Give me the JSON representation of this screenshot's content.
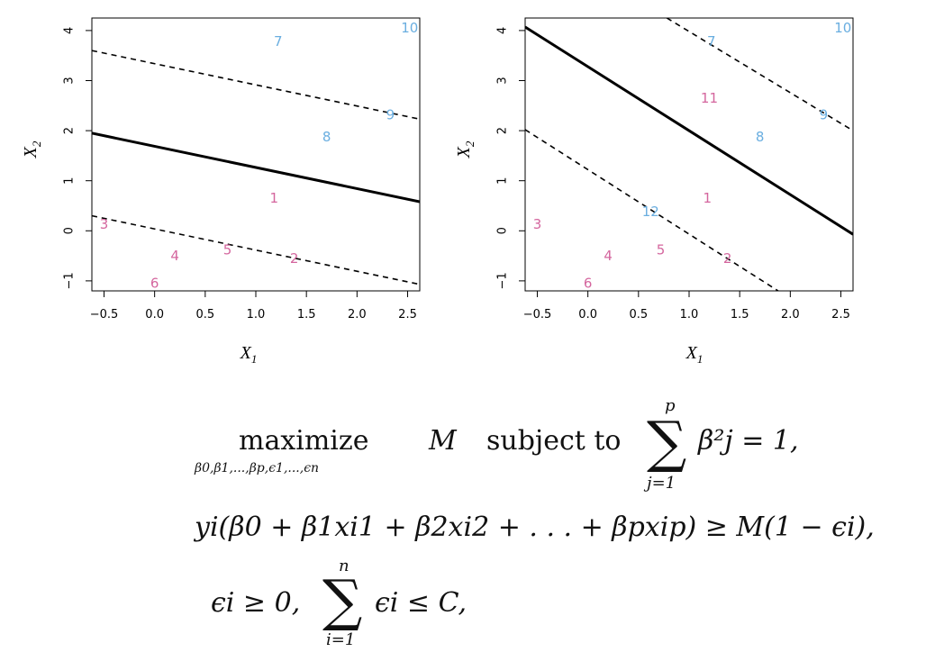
{
  "colors": {
    "pos": "#6aaee0",
    "neg": "#d4669e",
    "ink": "#000000"
  },
  "chart_data": [
    {
      "type": "scatter",
      "xlabel_main": "X",
      "xlabel_sub": "1",
      "ylabel_main": "X",
      "ylabel_sub": "2",
      "xlim": [
        -0.62,
        2.62
      ],
      "ylim": [
        -1.2,
        4.25
      ],
      "xticks": [
        "-0.5",
        "0.0",
        "0.5",
        "1.0",
        "1.5",
        "2.0",
        "2.5"
      ],
      "yticks": [
        "-1",
        "0",
        "1",
        "2",
        "3",
        "4"
      ],
      "points": [
        {
          "label": "1",
          "x": 1.18,
          "y": 0.65,
          "class": "neg"
        },
        {
          "label": "2",
          "x": 1.38,
          "y": -0.55,
          "class": "neg"
        },
        {
          "label": "3",
          "x": -0.5,
          "y": 0.13,
          "class": "neg"
        },
        {
          "label": "4",
          "x": 0.2,
          "y": -0.5,
          "class": "neg"
        },
        {
          "label": "5",
          "x": 0.72,
          "y": -0.38,
          "class": "neg"
        },
        {
          "label": "6",
          "x": 0.0,
          "y": -1.05,
          "class": "neg"
        },
        {
          "label": "7",
          "x": 1.22,
          "y": 3.78,
          "class": "pos"
        },
        {
          "label": "8",
          "x": 1.7,
          "y": 1.88,
          "class": "pos"
        },
        {
          "label": "9",
          "x": 2.33,
          "y": 2.32,
          "class": "pos"
        },
        {
          "label": "10",
          "x": 2.52,
          "y": 4.05,
          "class": "pos"
        }
      ],
      "lines": [
        {
          "style": "solid",
          "x1": -0.62,
          "y1": 1.95,
          "x2": 2.62,
          "y2": 0.58
        },
        {
          "style": "dashed",
          "x1": -0.62,
          "y1": 3.6,
          "x2": 2.62,
          "y2": 2.23
        },
        {
          "style": "dashed",
          "x1": -0.62,
          "y1": 0.3,
          "x2": 2.62,
          "y2": -1.07
        }
      ]
    },
    {
      "type": "scatter",
      "xlabel_main": "X",
      "xlabel_sub": "1",
      "ylabel_main": "X",
      "ylabel_sub": "2",
      "xlim": [
        -0.62,
        2.62
      ],
      "ylim": [
        -1.2,
        4.25
      ],
      "xticks": [
        "-0.5",
        "0.0",
        "0.5",
        "1.0",
        "1.5",
        "2.0",
        "2.5"
      ],
      "yticks": [
        "-1",
        "0",
        "1",
        "2",
        "3",
        "4"
      ],
      "points": [
        {
          "label": "1",
          "x": 1.18,
          "y": 0.65,
          "class": "neg"
        },
        {
          "label": "2",
          "x": 1.38,
          "y": -0.55,
          "class": "neg"
        },
        {
          "label": "3",
          "x": -0.5,
          "y": 0.13,
          "class": "neg"
        },
        {
          "label": "4",
          "x": 0.2,
          "y": -0.5,
          "class": "neg"
        },
        {
          "label": "5",
          "x": 0.72,
          "y": -0.38,
          "class": "neg"
        },
        {
          "label": "6",
          "x": 0.0,
          "y": -1.05,
          "class": "neg"
        },
        {
          "label": "7",
          "x": 1.22,
          "y": 3.78,
          "class": "pos"
        },
        {
          "label": "8",
          "x": 1.7,
          "y": 1.88,
          "class": "pos"
        },
        {
          "label": "9",
          "x": 2.33,
          "y": 2.32,
          "class": "pos"
        },
        {
          "label": "10",
          "x": 2.52,
          "y": 4.05,
          "class": "pos"
        },
        {
          "label": "11",
          "x": 1.2,
          "y": 2.65,
          "class": "neg"
        },
        {
          "label": "12",
          "x": 0.62,
          "y": 0.38,
          "class": "pos"
        }
      ],
      "lines": [
        {
          "style": "solid",
          "x1": -0.62,
          "y1": 4.07,
          "x2": 2.62,
          "y2": -0.07
        },
        {
          "style": "dashed",
          "x1": 0.78,
          "y1": 4.25,
          "x2": 2.62,
          "y2": 2.0
        },
        {
          "style": "dashed",
          "x1": -0.62,
          "y1": 2.02,
          "x2": 1.88,
          "y2": -1.2
        }
      ]
    }
  ],
  "formula": {
    "maximize": "maximize",
    "under_max": "β0,β1,...,βp,ϵ1,...,ϵn",
    "M": "M",
    "subject_to": "subject to",
    "sum1_upper": "p",
    "sum1_lower": "j=1",
    "constraint1": "β²j = 1,",
    "line2": "yi(β0 + β1xi1 + β2xi2 + . . . + βpxip) ≥ M(1 − ϵi),",
    "eps_nonneg": "ϵi ≥ 0,",
    "sum2_upper": "n",
    "sum2_lower": "i=1",
    "sum2_body": "ϵi ≤ C,"
  }
}
